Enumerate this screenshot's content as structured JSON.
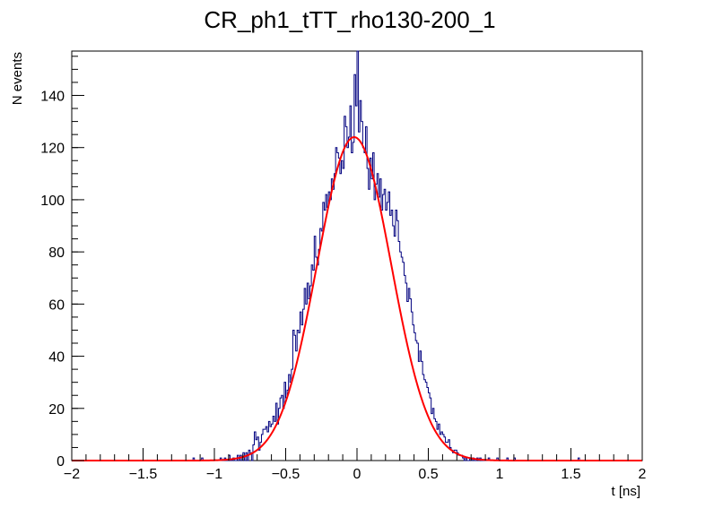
{
  "chart_data": {
    "type": "histogram",
    "title": "CR_ph1_tTT_rho130-200_1",
    "xlabel": "t [ns]",
    "ylabel": "N events",
    "xlim": [
      -2,
      2
    ],
    "ylim": [
      0,
      157
    ],
    "x_ticks": [
      -2,
      -1.5,
      -1,
      -0.5,
      0,
      0.5,
      1,
      1.5,
      2
    ],
    "x_tick_labels": [
      "−2",
      "−1.5",
      "−1",
      "−0.5",
      "0",
      "0.5",
      "1",
      "1.5",
      "2"
    ],
    "y_ticks": [
      0,
      20,
      40,
      60,
      80,
      100,
      120,
      140
    ],
    "y_tick_labels": [
      "0",
      "20",
      "40",
      "60",
      "80",
      "100",
      "120",
      "140"
    ],
    "grid": false,
    "histogram": {
      "bin_range": [
        -2,
        2
      ],
      "n_bins": 400,
      "nonzero_bins": [
        [
          -1.15,
          1
        ],
        [
          -1.09,
          1
        ],
        [
          -0.96,
          1
        ],
        [
          -0.93,
          1
        ],
        [
          -0.9,
          2
        ],
        [
          -0.87,
          1
        ],
        [
          -0.84,
          2
        ],
        [
          -0.82,
          2
        ],
        [
          -0.8,
          3
        ],
        [
          -0.78,
          3
        ],
        [
          -0.76,
          4
        ],
        [
          -0.75,
          3
        ],
        [
          -0.73,
          6
        ],
        [
          -0.72,
          11
        ],
        [
          -0.71,
          8
        ],
        [
          -0.7,
          9
        ],
        [
          -0.69,
          4
        ],
        [
          -0.68,
          7
        ],
        [
          -0.67,
          10
        ],
        [
          -0.66,
          12
        ],
        [
          -0.65,
          12
        ],
        [
          -0.64,
          13
        ],
        [
          -0.63,
          11
        ],
        [
          -0.62,
          15
        ],
        [
          -0.61,
          13
        ],
        [
          -0.6,
          14
        ],
        [
          -0.59,
          17
        ],
        [
          -0.58,
          15
        ],
        [
          -0.57,
          22
        ],
        [
          -0.56,
          14
        ],
        [
          -0.55,
          20
        ],
        [
          -0.54,
          24
        ],
        [
          -0.53,
          25
        ],
        [
          -0.52,
          20
        ],
        [
          -0.51,
          30
        ],
        [
          -0.5,
          24
        ],
        [
          -0.49,
          27
        ],
        [
          -0.48,
          33
        ],
        [
          -0.47,
          30
        ],
        [
          -0.46,
          35
        ],
        [
          -0.45,
          50
        ],
        [
          -0.44,
          48
        ],
        [
          -0.43,
          42
        ],
        [
          -0.42,
          50
        ],
        [
          -0.41,
          49
        ],
        [
          -0.4,
          57
        ],
        [
          -0.39,
          52
        ],
        [
          -0.38,
          58
        ],
        [
          -0.37,
          66
        ],
        [
          -0.36,
          60
        ],
        [
          -0.35,
          68
        ],
        [
          -0.34,
          62
        ],
        [
          -0.33,
          67
        ],
        [
          -0.32,
          75
        ],
        [
          -0.31,
          73
        ],
        [
          -0.3,
          86
        ],
        [
          -0.29,
          78
        ],
        [
          -0.28,
          75
        ],
        [
          -0.27,
          81
        ],
        [
          -0.26,
          89
        ],
        [
          -0.25,
          88
        ],
        [
          -0.24,
          99
        ],
        [
          -0.23,
          96
        ],
        [
          -0.22,
          102
        ],
        [
          -0.21,
          97
        ],
        [
          -0.2,
          103
        ],
        [
          -0.19,
          100
        ],
        [
          -0.18,
          108
        ],
        [
          -0.17,
          104
        ],
        [
          -0.16,
          110
        ],
        [
          -0.15,
          120
        ],
        [
          -0.14,
          118
        ],
        [
          -0.13,
          116
        ],
        [
          -0.12,
          110
        ],
        [
          -0.11,
          115
        ],
        [
          -0.1,
          112
        ],
        [
          -0.09,
          132
        ],
        [
          -0.08,
          128
        ],
        [
          -0.07,
          120
        ],
        [
          -0.06,
          124
        ],
        [
          -0.05,
          136
        ],
        [
          -0.04,
          118
        ],
        [
          -0.03,
          122
        ],
        [
          -0.02,
          148
        ],
        [
          -0.01,
          136
        ],
        [
          0.0,
          157
        ],
        [
          0.01,
          126
        ],
        [
          0.02,
          138
        ],
        [
          0.03,
          130
        ],
        [
          0.04,
          120
        ],
        [
          0.05,
          118
        ],
        [
          0.06,
          128
        ],
        [
          0.07,
          112
        ],
        [
          0.08,
          104
        ],
        [
          0.09,
          116
        ],
        [
          0.1,
          108
        ],
        [
          0.11,
          118
        ],
        [
          0.12,
          100
        ],
        [
          0.13,
          106
        ],
        [
          0.14,
          110
        ],
        [
          0.15,
          101
        ],
        [
          0.16,
          108
        ],
        [
          0.17,
          96
        ],
        [
          0.18,
          102
        ],
        [
          0.19,
          104
        ],
        [
          0.2,
          96
        ],
        [
          0.21,
          99
        ],
        [
          0.22,
          103
        ],
        [
          0.23,
          94
        ],
        [
          0.24,
          96
        ],
        [
          0.25,
          90
        ],
        [
          0.26,
          86
        ],
        [
          0.27,
          96
        ],
        [
          0.28,
          92
        ],
        [
          0.29,
          84
        ],
        [
          0.3,
          80
        ],
        [
          0.31,
          78
        ],
        [
          0.32,
          76
        ],
        [
          0.33,
          71
        ],
        [
          0.34,
          68
        ],
        [
          0.35,
          61
        ],
        [
          0.36,
          66
        ],
        [
          0.37,
          62
        ],
        [
          0.38,
          57
        ],
        [
          0.39,
          52
        ],
        [
          0.4,
          49
        ],
        [
          0.41,
          46
        ],
        [
          0.42,
          45
        ],
        [
          0.43,
          38
        ],
        [
          0.44,
          42
        ],
        [
          0.45,
          38
        ],
        [
          0.46,
          33
        ],
        [
          0.47,
          31
        ],
        [
          0.48,
          30
        ],
        [
          0.49,
          28
        ],
        [
          0.5,
          26
        ],
        [
          0.51,
          24
        ],
        [
          0.52,
          18
        ],
        [
          0.53,
          20
        ],
        [
          0.54,
          16
        ],
        [
          0.55,
          15
        ],
        [
          0.56,
          12
        ],
        [
          0.57,
          14
        ],
        [
          0.58,
          10
        ],
        [
          0.59,
          11
        ],
        [
          0.6,
          10
        ],
        [
          0.61,
          9
        ],
        [
          0.62,
          7
        ],
        [
          0.63,
          7
        ],
        [
          0.64,
          8
        ],
        [
          0.65,
          5
        ],
        [
          0.66,
          4
        ],
        [
          0.67,
          3
        ],
        [
          0.68,
          4
        ],
        [
          0.69,
          4
        ],
        [
          0.7,
          3
        ],
        [
          0.71,
          2
        ],
        [
          0.72,
          2
        ],
        [
          0.73,
          2
        ],
        [
          0.74,
          1
        ],
        [
          0.76,
          1
        ],
        [
          0.79,
          1
        ],
        [
          0.81,
          1
        ],
        [
          0.84,
          1
        ],
        [
          0.86,
          1
        ],
        [
          0.92,
          1
        ],
        [
          0.98,
          1
        ],
        [
          1.05,
          1
        ],
        [
          1.1,
          1
        ],
        [
          1.55,
          1
        ]
      ],
      "color": "#00007f"
    },
    "fit": {
      "type": "gaussian",
      "amplitude": 124,
      "mean": -0.02,
      "sigma": 0.26,
      "range": [
        -2,
        2
      ],
      "color": "#ff0000"
    }
  }
}
